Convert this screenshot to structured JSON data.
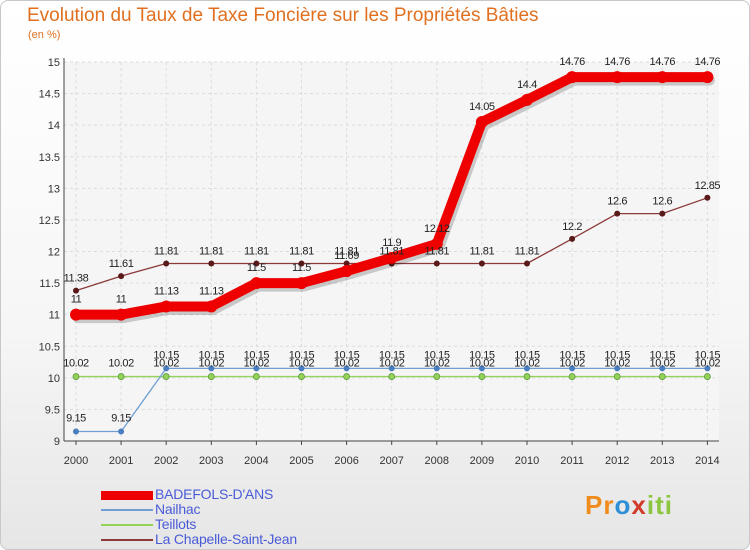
{
  "title": "Evolution du Taux de Taxe Foncière sur les Propriétés Bâties",
  "unit_label": "(en %)",
  "logo": {
    "letters": [
      "P",
      "r",
      "o",
      "x",
      "i",
      "t",
      "i"
    ],
    "colors": [
      "#f08c1e",
      "#f08c1e",
      "#2f8fd6",
      "#d23a2a",
      "#8cc63f",
      "#8cc63f",
      "#8cc63f"
    ]
  },
  "chart_data": {
    "type": "line",
    "title": "Evolution du Taux de Taxe Foncière sur les Propriétés Bâties",
    "ylabel": "(en %)",
    "xlabel": "",
    "ylim": [
      9,
      15
    ],
    "yticks": [
      "9",
      "9.5",
      "10",
      "10.5",
      "11",
      "11.5",
      "12",
      "12.5",
      "13",
      "13.5",
      "14",
      "14.5",
      "15"
    ],
    "categories": [
      "2000",
      "2001",
      "2002",
      "2003",
      "2004",
      "2005",
      "2006",
      "2007",
      "2008",
      "2009",
      "2010",
      "2011",
      "2012",
      "2013",
      "2014"
    ],
    "series": [
      {
        "name": "BADEFOLS-D'ANS",
        "color": "#ee0000",
        "values": [
          11,
          11,
          11.13,
          11.13,
          11.5,
          11.5,
          11.69,
          11.9,
          12.12,
          14.05,
          14.4,
          14.76,
          14.76,
          14.76,
          14.76
        ],
        "labels": [
          "11",
          "11",
          "11.13",
          "11.13",
          "11.5",
          "11.5",
          "11.69",
          "11.9",
          "12.12",
          "14.05",
          "14.4",
          "14.76",
          "14.76",
          "14.76",
          "14.76"
        ]
      },
      {
        "name": "Nailhac",
        "color": "#6e9ed2",
        "values": [
          9.15,
          9.15,
          10.15,
          10.15,
          10.15,
          10.15,
          10.15,
          10.15,
          10.15,
          10.15,
          10.15,
          10.15,
          10.15,
          10.15,
          10.15
        ],
        "labels": [
          "9.15",
          "9.15",
          "10.15",
          "10.15",
          "10.15",
          "10.15",
          "10.15",
          "10.15",
          "10.15",
          "10.15",
          "10.15",
          "10.15",
          "10.15",
          "10.15",
          "10.15"
        ]
      },
      {
        "name": "Teillots",
        "color": "#94d25a",
        "values": [
          10.02,
          10.02,
          10.02,
          10.02,
          10.02,
          10.02,
          10.02,
          10.02,
          10.02,
          10.02,
          10.02,
          10.02,
          10.02,
          10.02,
          10.02
        ],
        "labels": [
          "10.02",
          "10.02",
          "10.02",
          "10.02",
          "10.02",
          "10.02",
          "10.02",
          "10.02",
          "10.02",
          "10.02",
          "10.02",
          "10.02",
          "10.02",
          "10.02",
          "10.02"
        ]
      },
      {
        "name": "La Chapelle-Saint-Jean",
        "color": "#8a3a3a",
        "values": [
          11.38,
          11.61,
          11.81,
          11.81,
          11.81,
          11.81,
          11.81,
          11.81,
          11.81,
          11.81,
          11.81,
          12.2,
          12.6,
          12.6,
          12.85
        ],
        "labels": [
          "11.38",
          "11.61",
          "11.81",
          "11.81",
          "11.81",
          "11.81",
          "11.81",
          "11.81",
          "11.81",
          "11.81",
          "11.81",
          "12.2",
          "12.6",
          "12.6",
          "12.85"
        ]
      }
    ]
  }
}
